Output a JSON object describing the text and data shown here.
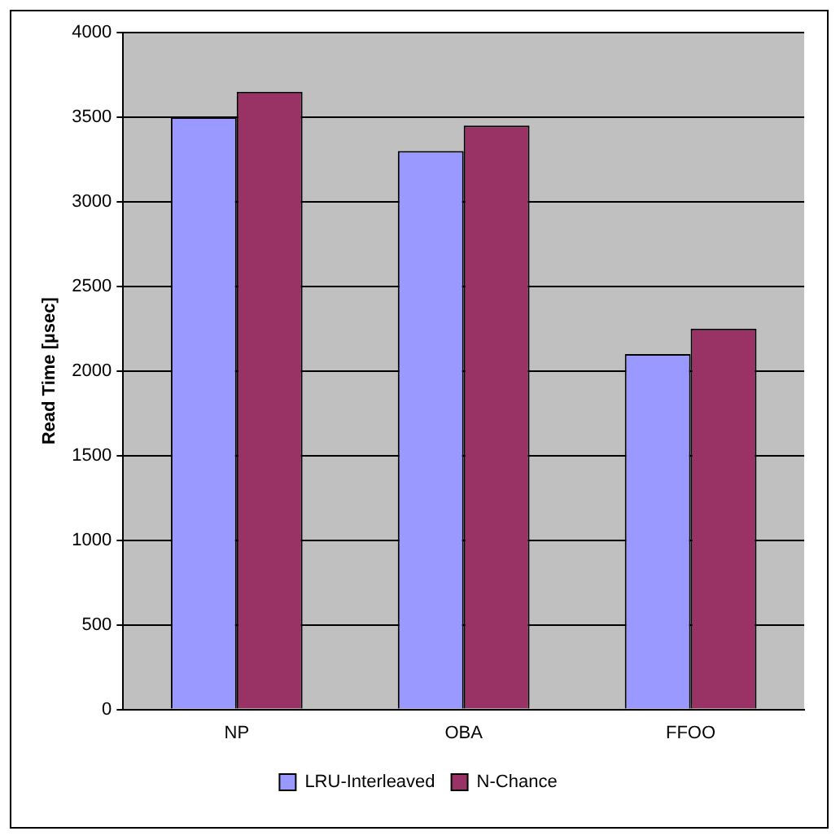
{
  "chart_data": {
    "type": "bar",
    "ylabel": "Read Time [µsec]",
    "categories": [
      "NP",
      "OBA",
      "FFOO"
    ],
    "series": [
      {
        "name": "LRU-Interleaved",
        "color": "#9999ff",
        "values": [
          3500,
          3300,
          2100
        ]
      },
      {
        "name": "N-Chance",
        "color": "#993366",
        "values": [
          3650,
          3450,
          2250
        ]
      }
    ],
    "ylim": [
      0,
      4000
    ],
    "yticks": [
      0,
      500,
      1000,
      1500,
      2000,
      2500,
      3000,
      3500,
      4000
    ],
    "grid": "y",
    "legend": "bottom"
  }
}
